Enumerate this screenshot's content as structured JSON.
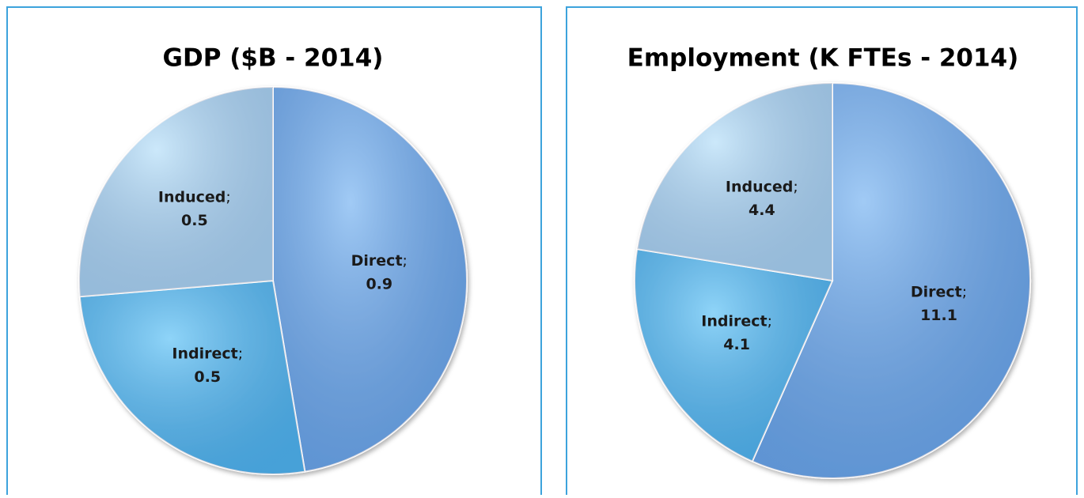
{
  "chart_data": [
    {
      "type": "pie",
      "title": "GDP ($B - 2014)",
      "categories": [
        "Direct",
        "Indirect",
        "Induced"
      ],
      "values": [
        0.9,
        0.5,
        0.5
      ],
      "colors": [
        "#6eaef0",
        "#52bdf5",
        "#b0dcf8"
      ],
      "label_separator": ";"
    },
    {
      "type": "pie",
      "title": "Employment (K FTEs - 2014)",
      "categories": [
        "Direct",
        "Indirect",
        "Induced"
      ],
      "values": [
        11.1,
        4.1,
        4.4
      ],
      "colors": [
        "#6eaef0",
        "#52bdf5",
        "#b0dcf8"
      ],
      "label_separator": ";"
    }
  ]
}
